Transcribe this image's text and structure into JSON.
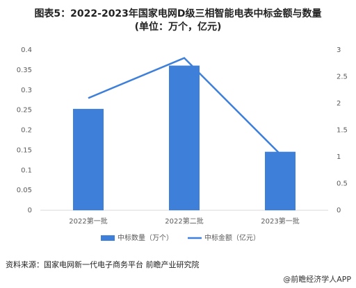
{
  "chart_data": {
    "type": "bar",
    "title": "图表5：2022-2023年国家电网D级三相智能电表中标金额与数量",
    "subtitle": "(单位：万个，亿元)",
    "categories": [
      "2022第一批",
      "2022第二批",
      "2023第一批"
    ],
    "series": [
      {
        "name": "中标数量（万个）",
        "color": "#3d7fd9",
        "type": "bar",
        "values": [
          0.253,
          0.361,
          0.146
        ]
      },
      {
        "name": "中标金额（亿元）",
        "color": "#3d7fd9",
        "type": "line",
        "axis": "y2",
        "values": [
          2.1,
          2.85,
          1.05
        ]
      }
    ],
    "ylim": [
      0,
      0.4
    ],
    "yticks": [
      0,
      0.05,
      0.1,
      0.15,
      0.2,
      0.25,
      0.3,
      0.35,
      0.4
    ],
    "y2lim": [
      0,
      3
    ],
    "y2ticks": [
      0,
      0.5,
      1,
      1.5,
      2,
      2.5,
      3
    ],
    "source": "资料来源：国家电网新一代电子商务平台 前瞻产业研究院",
    "watermark": "@前瞻经济学人APP"
  }
}
